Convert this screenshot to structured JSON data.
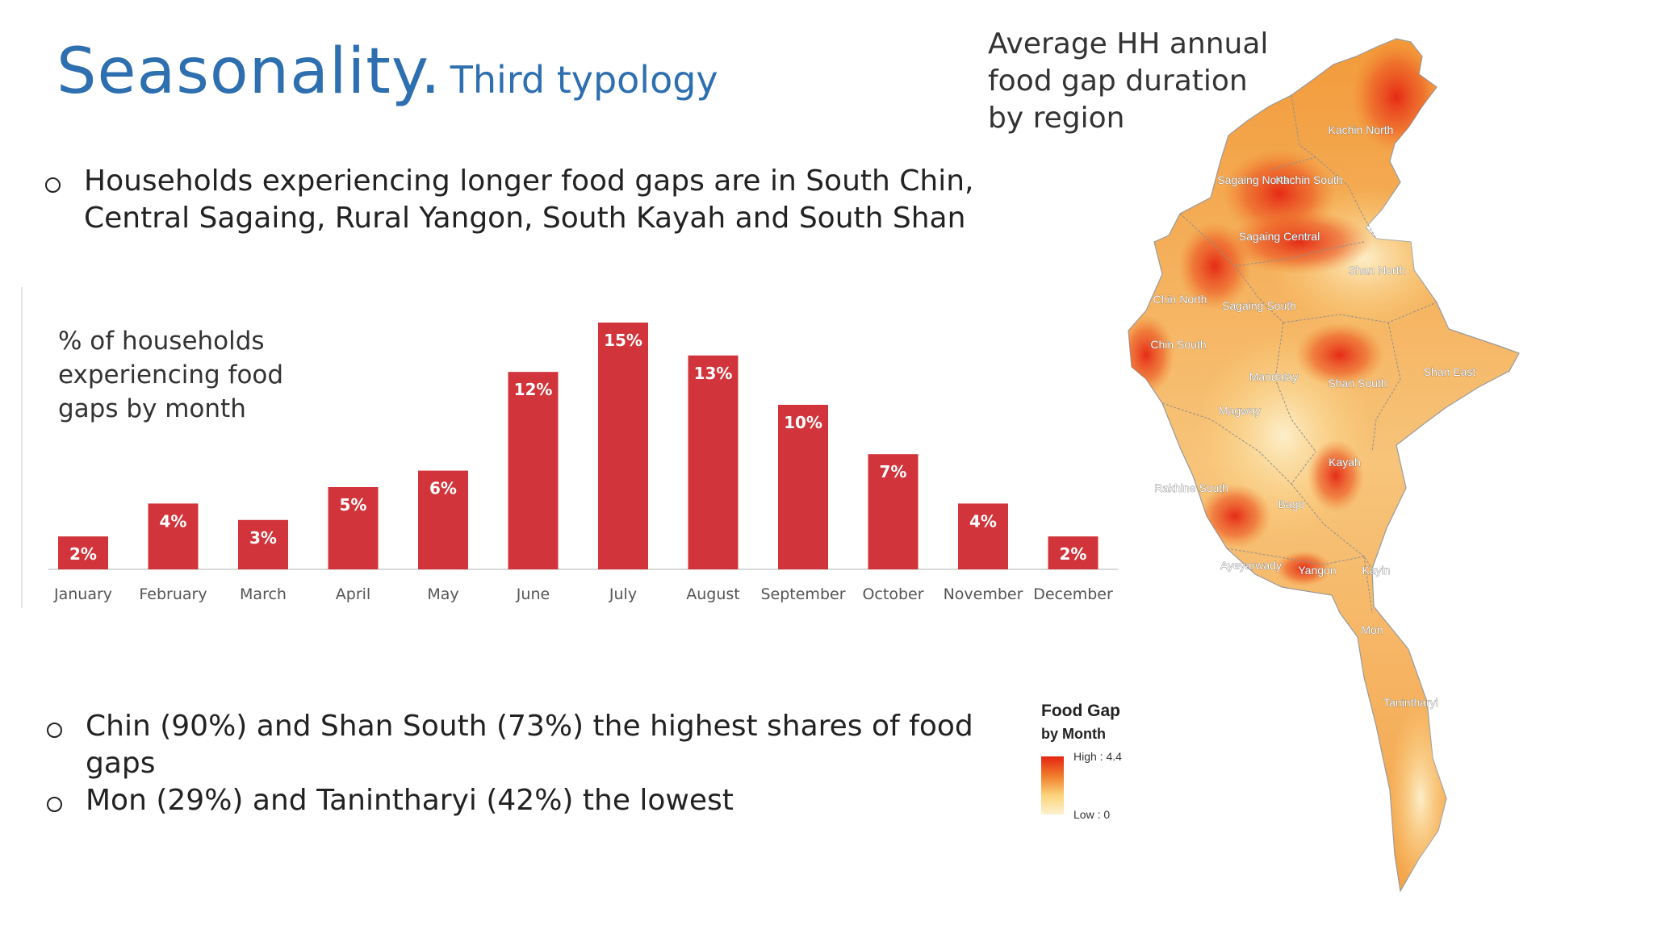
{
  "header": {
    "title": "Seasonality.",
    "subtitle": "Third typology"
  },
  "bullets": {
    "top": "Households experiencing longer food gaps are in South Chin, Central Sagaing, Rural Yangon, South Kayah and South Shan",
    "b1": "Chin (90%) and Shan South (73%) the highest shares of food gaps",
    "b2": "Mon (29%) and Tanintharyi (42%) the lowest"
  },
  "chart_caption": {
    "line1": "% of households",
    "line2": "experiencing food",
    "line3": "gaps by month"
  },
  "chart_data": {
    "type": "bar",
    "categories": [
      "January",
      "February",
      "March",
      "April",
      "May",
      "June",
      "July",
      "August",
      "September",
      "October",
      "November",
      "December"
    ],
    "values": [
      2,
      4,
      3,
      5,
      6,
      12,
      15,
      13,
      10,
      7,
      4,
      2
    ],
    "value_labels": [
      "2%",
      "4%",
      "3%",
      "5%",
      "6%",
      "12%",
      "15%",
      "13%",
      "10%",
      "7%",
      "4%",
      "2%"
    ],
    "title": "% of households experiencing food gaps by month",
    "unit": "%",
    "color": "#d1343a",
    "grid": false,
    "legend": "none"
  },
  "map": {
    "title_lines": [
      "Average HH annual",
      "food gap duration",
      "by region"
    ],
    "regions": [
      "Kachin North",
      "Kachin South",
      "Sagaing North",
      "Sagaing Central",
      "Sagaing South",
      "Chin North",
      "Chin South",
      "Shan North",
      "Mandalay",
      "Magway",
      "Shan South",
      "Shan East",
      "Kayah",
      "Rakhine South",
      "Bago",
      "Ayeyarwady",
      "Yangon",
      "Kayin",
      "Mon",
      "Tanintharyi"
    ],
    "colors": {
      "high": "#e52413",
      "mid": "#f07c2a",
      "low": "#fbd37a",
      "lowest": "#fdf1cf",
      "border": "#8f8f8f"
    }
  },
  "legend": {
    "title_line1": "Food Gap",
    "title_line2": "by Month",
    "high_label": "High : 4.4",
    "low_label": "Low : 0"
  }
}
